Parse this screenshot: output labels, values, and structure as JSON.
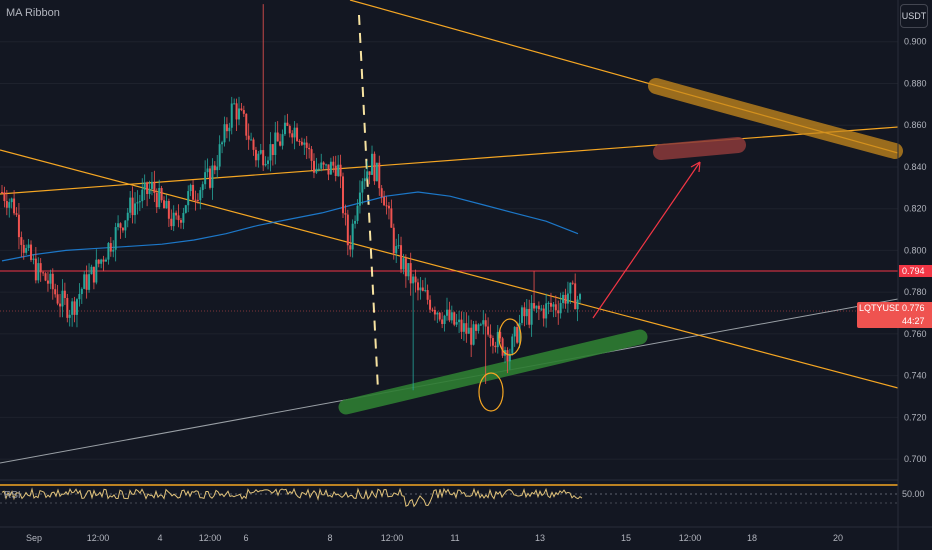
{
  "indicator": {
    "name": "MA Ribbon"
  },
  "rsi_label": "RSI",
  "currency": "USDT",
  "symbol": "LQTYUSDT",
  "price_axis": {
    "ticks": [
      "0.900",
      "0.880",
      "0.860",
      "0.840",
      "0.820",
      "0.800",
      "0.780",
      "0.760",
      "0.740",
      "0.720",
      "0.700"
    ]
  },
  "tags": {
    "resistance": "0.794",
    "last_price": "0.776",
    "countdown": "44:27",
    "rsi_level": "50.00"
  },
  "time_axis": {
    "ticks": [
      "Sep",
      "12:00",
      "4",
      "12:00",
      "6",
      "8",
      "12:00",
      "11",
      "13",
      "15",
      "12:00",
      "18",
      "20"
    ]
  },
  "colors": {
    "background": "#131722",
    "up": "#26a69a",
    "down": "#ef5350",
    "resistance_line": "#f23645",
    "trendline": "#f5a623",
    "ma": "#1e88e5",
    "support_band": "#2e7d32",
    "target_band": "#a0522d",
    "rsi_line": "#e0c27a"
  },
  "chart_data": {
    "type": "candlestick",
    "y_range": [
      0.69,
      0.92
    ],
    "resistance_level": 0.794,
    "last_price": 0.776,
    "time_axis_labels": [
      "Sep",
      "12:00",
      "4",
      "12:00",
      "6",
      "8",
      "12:00",
      "11",
      "13",
      "15",
      "12:00",
      "18",
      "20"
    ],
    "price_path": [
      0.828,
      0.822,
      0.8,
      0.79,
      0.785,
      0.776,
      0.772,
      0.783,
      0.79,
      0.8,
      0.81,
      0.82,
      0.825,
      0.83,
      0.82,
      0.812,
      0.825,
      0.83,
      0.835,
      0.85,
      0.87,
      0.86,
      0.845,
      0.848,
      0.852,
      0.86,
      0.855,
      0.84,
      0.838,
      0.842,
      0.8,
      0.835,
      0.842,
      0.828,
      0.8,
      0.79,
      0.78,
      0.776,
      0.77,
      0.765,
      0.762,
      0.758,
      0.765,
      0.755,
      0.752,
      0.768,
      0.77,
      0.772,
      0.774,
      0.78,
      0.776
    ],
    "ma_path": [
      0.795,
      0.798,
      0.8,
      0.801,
      0.802,
      0.803,
      0.805,
      0.808,
      0.812,
      0.815,
      0.818,
      0.822,
      0.826,
      0.828,
      0.826,
      0.822,
      0.818,
      0.814,
      0.808
    ],
    "rsi_level": 50.0
  }
}
